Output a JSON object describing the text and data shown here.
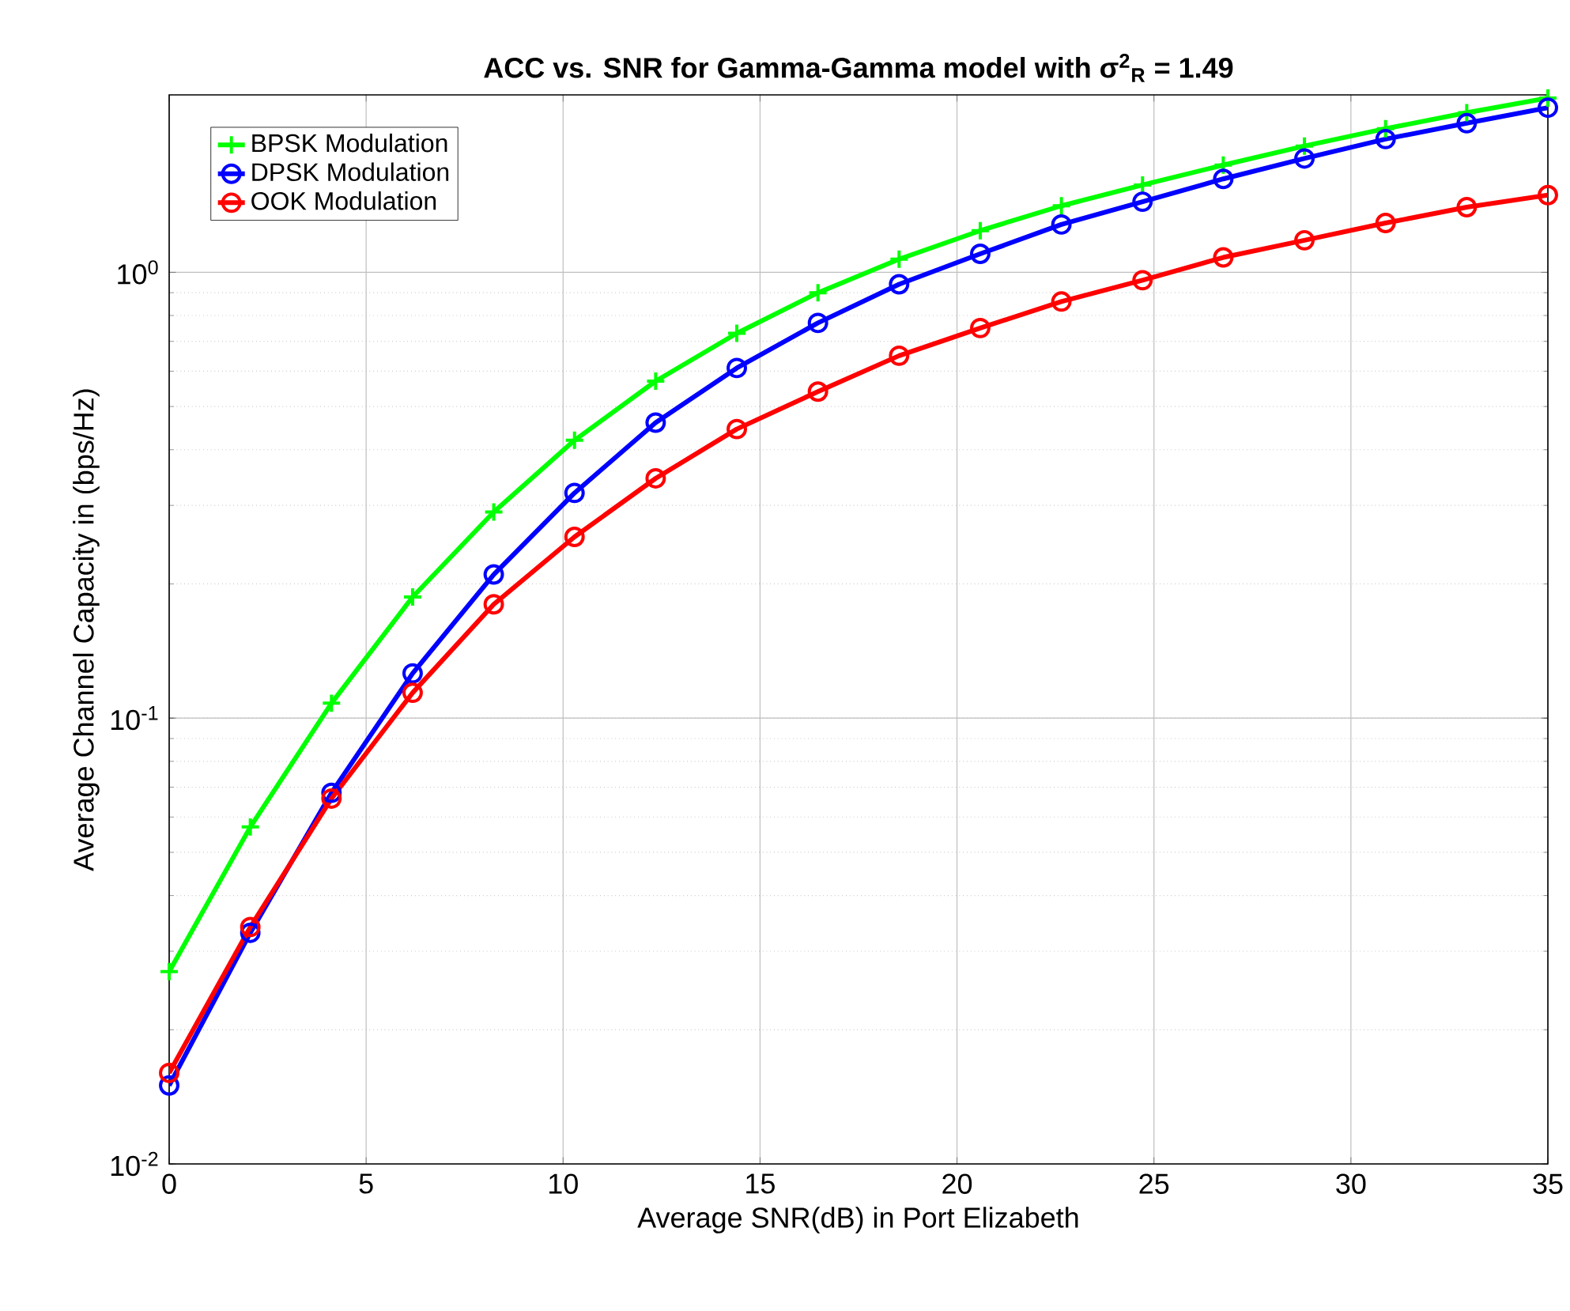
{
  "chart_data": {
    "type": "line",
    "title": "ACC vs. SNR for Gamma-Gamma model with σ$^{2}$$_{R}$ = 1.49",
    "xlabel": "Average SNR(dB) in Port Elizabeth",
    "ylabel": "Average Channel Capacity in (bps/Hz)",
    "x": [
      0,
      2.06,
      4.12,
      6.18,
      8.24,
      10.29,
      12.35,
      14.41,
      16.47,
      18.53,
      20.59,
      22.65,
      24.71,
      26.76,
      28.82,
      30.88,
      32.94,
      35
    ],
    "series": [
      {
        "name": "BPSK Modulation",
        "color": "#00ff00",
        "marker": "cross",
        "values": [
          0.027,
          0.057,
          0.108,
          0.187,
          0.29,
          0.42,
          0.57,
          0.73,
          0.9,
          1.07,
          1.24,
          1.41,
          1.57,
          1.74,
          1.92,
          2.1,
          2.28,
          2.46
        ]
      },
      {
        "name": "DPSK Modulation",
        "color": "#0000ff",
        "marker": "circle",
        "values": [
          0.015,
          0.033,
          0.068,
          0.126,
          0.21,
          0.32,
          0.46,
          0.61,
          0.77,
          0.94,
          1.1,
          1.28,
          1.44,
          1.62,
          1.8,
          1.99,
          2.16,
          2.34
        ]
      },
      {
        "name": "OOK Modulation",
        "color": "#ff0000",
        "marker": "circle",
        "values": [
          0.016,
          0.034,
          0.066,
          0.114,
          0.18,
          0.255,
          0.345,
          0.445,
          0.54,
          0.65,
          0.75,
          0.86,
          0.96,
          1.08,
          1.18,
          1.29,
          1.4,
          1.49
        ]
      }
    ],
    "xlim": [
      0,
      35
    ],
    "ylim": [
      0.01,
      2.5
    ],
    "xticks": [
      0,
      5,
      10,
      15,
      20,
      25,
      30,
      35
    ],
    "yticks": [
      {
        "value": 0.01,
        "label": "10$^{-2}$"
      },
      {
        "value": 0.1,
        "label": "10$^{-1}$"
      },
      {
        "value": 1,
        "label": "10$^{0}$"
      }
    ],
    "log": "y",
    "grid": true,
    "legend": "top left",
    "line_style": "solid"
  }
}
